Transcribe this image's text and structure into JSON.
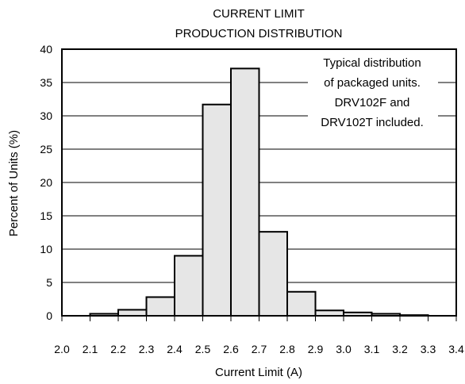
{
  "chart_data": {
    "type": "bar",
    "title": [
      "CURRENT LIMIT",
      "PRODUCTION DISTRIBUTION"
    ],
    "xlabel": "Current Limit (A)",
    "ylabel": "Percent of Units (%)",
    "x_ticks": [
      "2.0",
      "2.1",
      "2.2",
      "2.3",
      "2.4",
      "2.5",
      "2.6",
      "2.7",
      "2.8",
      "2.9",
      "3.0",
      "3.1",
      "3.2",
      "3.3",
      "3.4"
    ],
    "y_ticks": [
      "0",
      "5",
      "10",
      "15",
      "20",
      "25",
      "30",
      "35",
      "40"
    ],
    "xlim": [
      2.0,
      3.4
    ],
    "ylim": [
      0,
      40
    ],
    "grid": "horizontal",
    "bin_width": 0.1,
    "bins": [
      {
        "start": 2.1,
        "value": 0.3
      },
      {
        "start": 2.2,
        "value": 0.9
      },
      {
        "start": 2.3,
        "value": 2.8
      },
      {
        "start": 2.4,
        "value": 9.0
      },
      {
        "start": 2.5,
        "value": 31.7
      },
      {
        "start": 2.6,
        "value": 37.1
      },
      {
        "start": 2.7,
        "value": 12.6
      },
      {
        "start": 2.8,
        "value": 3.6
      },
      {
        "start": 2.9,
        "value": 0.8
      },
      {
        "start": 3.0,
        "value": 0.5
      },
      {
        "start": 3.1,
        "value": 0.3
      },
      {
        "start": 3.2,
        "value": 0.1
      }
    ],
    "annotation": [
      "Typical distribution",
      "of packaged units.",
      "DRV102F and",
      "DRV102T included."
    ],
    "colors": {
      "bar_fill": "#e6e6e6",
      "stroke": "#000000"
    }
  }
}
